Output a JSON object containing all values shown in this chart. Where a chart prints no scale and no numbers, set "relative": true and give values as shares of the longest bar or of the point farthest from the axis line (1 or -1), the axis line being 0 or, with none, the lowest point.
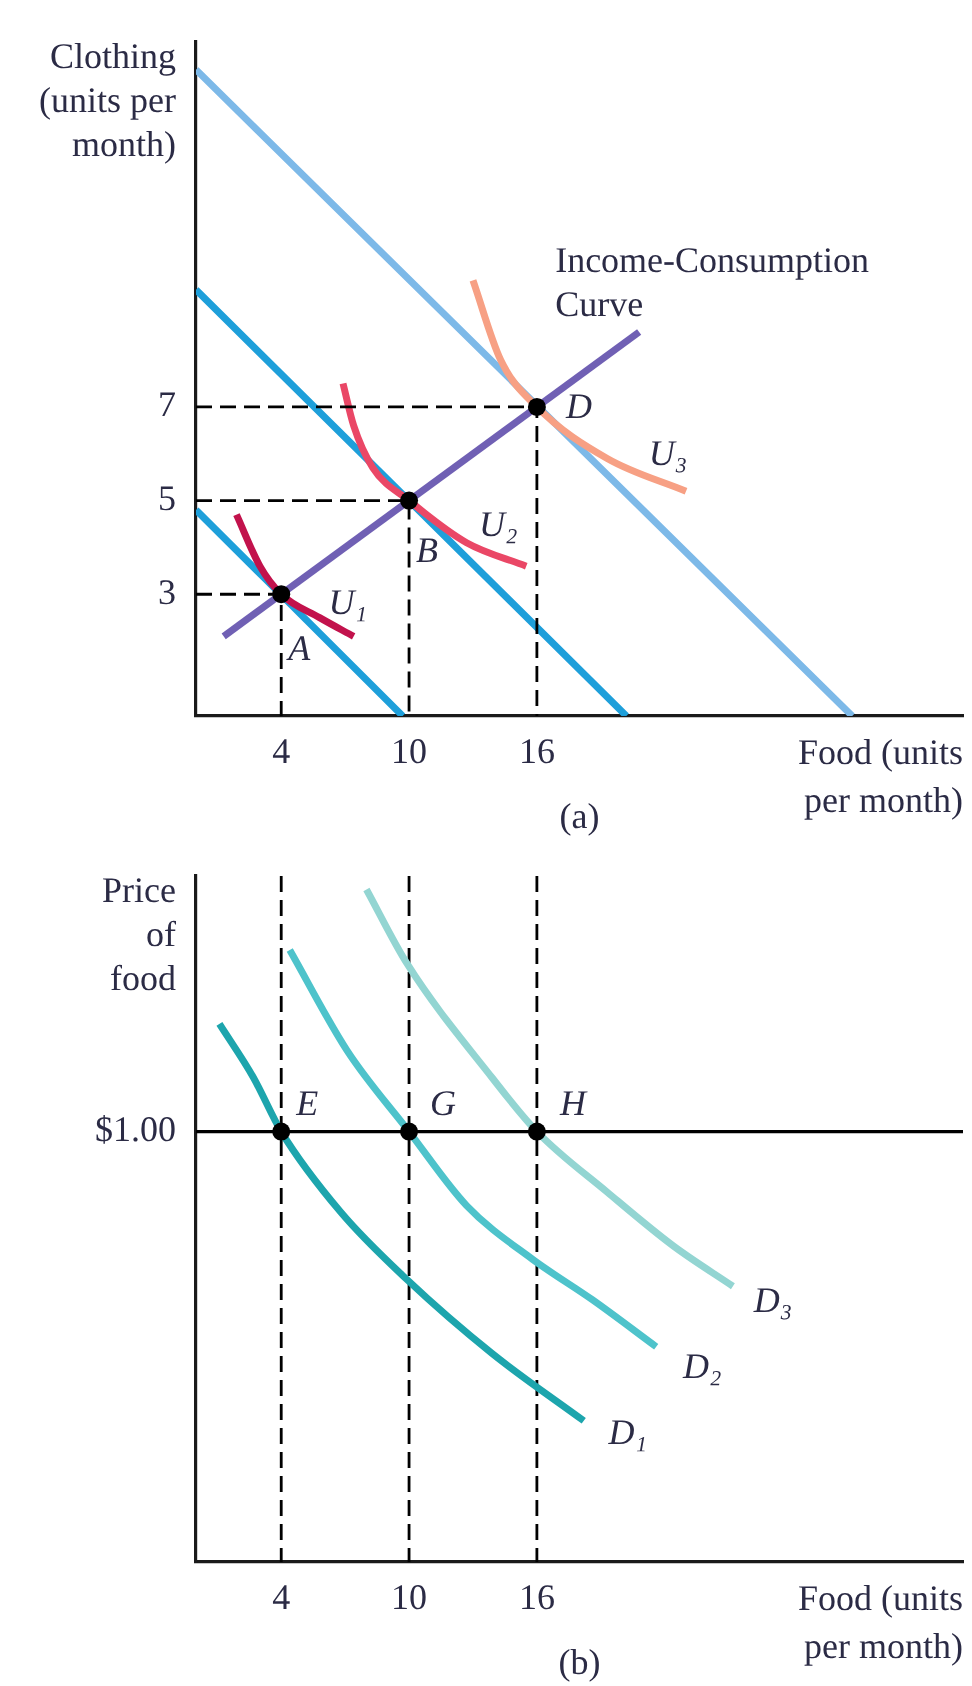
{
  "chart_data": [
    {
      "type": "line",
      "xlabel": "Food (units per month)",
      "ylabel": "Clothing (units per month)",
      "xlim": [
        0,
        36
      ],
      "xticks": [
        4,
        10,
        16
      ],
      "ylim": [
        0.4,
        14.8
      ],
      "yticks": [
        3,
        5,
        7
      ],
      "series": [
        {
          "color": "#1e9fda",
          "x": [
            0,
            9.7
          ],
          "values": [
            4.8,
            0.4
          ]
        },
        {
          "color": "#1e9fda",
          "x": [
            0,
            20.2
          ],
          "values": [
            9.5,
            0.4
          ]
        },
        {
          "color": "#7db9e8",
          "x": [
            0,
            30.8
          ],
          "values": [
            14.2,
            0.4
          ]
        },
        {
          "name": "U₁",
          "color": "#c2124c",
          "x": [
            1.9,
            3,
            4,
            5.8,
            7.4
          ],
          "values": [
            4.7,
            3.6,
            3,
            2.5,
            2.1
          ]
        },
        {
          "name": "U₂",
          "color": "#ea4766",
          "x": [
            6.9,
            7.4,
            8.3,
            10,
            12.7,
            15.5
          ],
          "values": [
            7.5,
            6.6,
            5.7,
            5,
            4.1,
            3.6
          ]
        },
        {
          "name": "U₃",
          "color": "#f7a084",
          "x": [
            13,
            14.3,
            16,
            19.3,
            23
          ],
          "values": [
            9.7,
            8,
            7,
            5.9,
            5.2
          ]
        },
        {
          "name": "Income-Consumption Curve",
          "color": "#7060b4",
          "x": [
            1.3,
            20.8
          ],
          "values": [
            2.1,
            8.6
          ]
        },
        {
          "line_style": "dashed",
          "color": "#000000",
          "x": [
            0,
            4,
            4
          ],
          "values": [
            3,
            3,
            0.4
          ]
        },
        {
          "line_style": "dashed",
          "color": "#000000",
          "x": [
            0,
            10,
            10
          ],
          "values": [
            5,
            5,
            0.4
          ]
        },
        {
          "line_style": "dashed",
          "color": "#000000",
          "x": [
            0,
            16,
            16
          ],
          "values": [
            7,
            7,
            0.4
          ]
        },
        {
          "type": "scatter",
          "marker": "circle",
          "color": "#000000",
          "x": [
            4,
            10,
            16
          ],
          "values": [
            3,
            5,
            7
          ]
        }
      ],
      "annotations": [
        {
          "text": "A",
          "x": 4,
          "y": 3
        },
        {
          "text": "B",
          "x": 10,
          "y": 5
        },
        {
          "text": "D",
          "x": 16,
          "y": 7
        },
        "(a)"
      ]
    },
    {
      "type": "line",
      "xlabel": "Food (units per month)",
      "ylabel": "Price of food",
      "relative": true,
      "xlim": [
        0,
        36
      ],
      "xticks": [
        4,
        10,
        16
      ],
      "series": [
        {
          "name": "D₁",
          "color": "#1da5ad",
          "x": [
            1.1,
            2.7,
            4,
            6.8,
            9.9,
            13.9,
            18.2
          ],
          "values": [
            0.8,
            0.72,
            0.64,
            0.52,
            0.42,
            0.31,
            0.21
          ]
        },
        {
          "name": "D₂",
          "color": "#4ec3cb",
          "x": [
            4.4,
            7.1,
            10,
            12.7,
            15.8,
            18.6,
            21.6
          ],
          "values": [
            0.91,
            0.76,
            0.64,
            0.53,
            0.45,
            0.39,
            0.32
          ]
        },
        {
          "name": "D₃",
          "color": "#93d5d2",
          "x": [
            8,
            9.9,
            13.9,
            16,
            19.3,
            22.4,
            25.2
          ],
          "values": [
            1,
            0.89,
            0.72,
            0.64,
            0.55,
            0.47,
            0.41
          ]
        },
        {
          "type": "scatter",
          "marker": "circle",
          "color": "#000000",
          "x": [
            4,
            10,
            16
          ],
          "values": [
            0.64,
            0.64,
            0.64
          ]
        }
      ],
      "ref_lines": [
        {
          "axis": "x",
          "value": 4,
          "line_style": "dashed",
          "color": "#000000"
        },
        {
          "axis": "x",
          "value": 10,
          "line_style": "dashed",
          "color": "#000000"
        },
        {
          "axis": "x",
          "value": 16,
          "line_style": "dashed",
          "color": "#000000"
        },
        {
          "axis": "y",
          "value": 0.64,
          "color": "#000000"
        }
      ],
      "annotations": [
        {
          "text": "E",
          "x": 4,
          "y": 0.64
        },
        {
          "text": "G",
          "x": 10,
          "y": 0.64
        },
        {
          "text": "H",
          "x": 16,
          "y": 0.64
        },
        "(b)",
        "$1.00"
      ]
    }
  ]
}
